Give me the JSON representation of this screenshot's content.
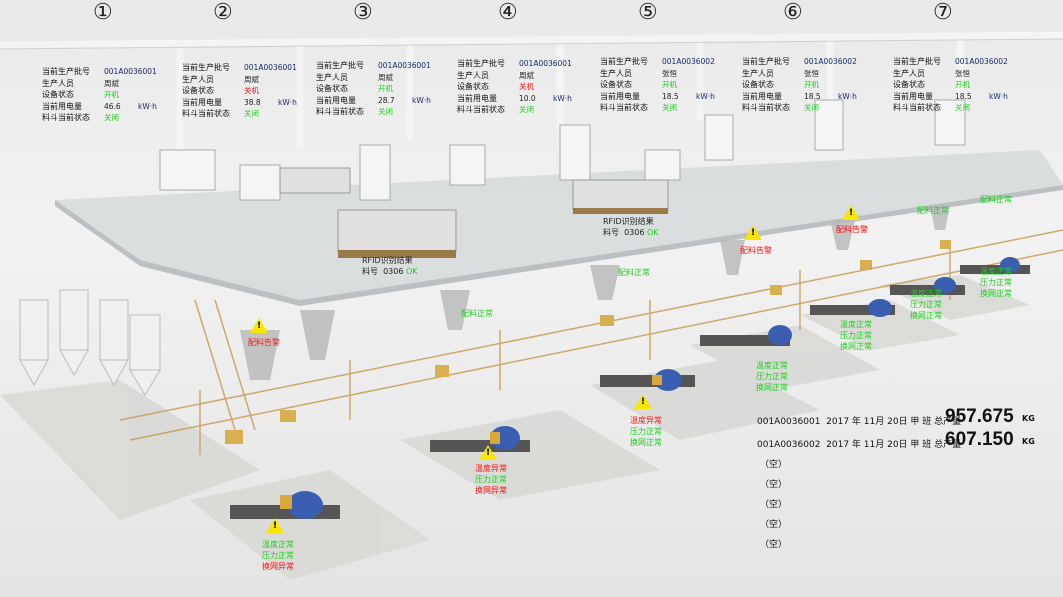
{
  "line_numbers": [
    "①",
    "②",
    "③",
    "④",
    "⑤",
    "⑥",
    "⑦"
  ],
  "panel_labels": {
    "batch": "当前生产批号",
    "operator": "生产人员",
    "device_status": "设备状态",
    "power": "当前用电量",
    "hopper_status": "料斗当前状态",
    "unit": "kW·h"
  },
  "panels": [
    {
      "batch": "001A0036001",
      "operator": "周斌",
      "device_status": "开机",
      "power": "46.6",
      "hopper_status": "关闭"
    },
    {
      "batch": "001A0036001",
      "operator": "周斌",
      "device_status": "关机",
      "power": "38.8",
      "hopper_status": "关闭"
    },
    {
      "batch": "001A0036001",
      "operator": "周斌",
      "device_status": "开机",
      "power": "28.7",
      "hopper_status": "关闭"
    },
    {
      "batch": "001A0036001",
      "operator": "周斌",
      "device_status": "关机",
      "power": "10.0",
      "hopper_status": "关闭"
    },
    {
      "batch": "001A0036002",
      "operator": "张恒",
      "device_status": "开机",
      "power": "18.5",
      "hopper_status": "关闭"
    },
    {
      "batch": "001A0036002",
      "operator": "张恒",
      "device_status": "开机",
      "power": "18.5",
      "hopper_status": "关闭"
    },
    {
      "batch": "001A0036002",
      "operator": "张恒",
      "device_status": "开机",
      "power": "18.5",
      "hopper_status": "关闭"
    }
  ],
  "rfid": [
    {
      "title": "RFID识别结果",
      "part_label": "料号",
      "part": "0306",
      "result": "OK"
    },
    {
      "title": "RFID识别结果",
      "part_label": "料号",
      "part": "0306",
      "result": "OK"
    }
  ],
  "batching_status": [
    "配料告警",
    "配料正常",
    "配料正常",
    "配料告警",
    "配料告警",
    "配料正常",
    "配料正常"
  ],
  "extruder_status": [
    [
      "温度正常",
      "压力正常",
      "换网异常"
    ],
    [
      "温度异常",
      "压力正常",
      "换网异常"
    ],
    [
      "温度异常",
      "压力正常",
      "换网正常"
    ],
    [
      "温度正常",
      "压力正常",
      "换网正常"
    ],
    [
      "温度正常",
      "压力正常",
      "换网正常"
    ],
    [
      "温度正常",
      "压力正常",
      "换网正常"
    ],
    [
      "温度正常",
      "压力正常",
      "换网正常"
    ]
  ],
  "summary": [
    {
      "batch": "001A0036001",
      "desc": "2017 年 11月 20日 甲 班 总产量",
      "value": "957.675",
      "unit": "KG"
    },
    {
      "batch": "001A0036002",
      "desc": "2017 年 11月 20日 甲 班 总产量",
      "value": "607.150",
      "unit": "KG"
    }
  ],
  "empty_slots": [
    "（空）",
    "（空）",
    "（空）",
    "（空）",
    "（空）"
  ],
  "colors": {
    "ok": "#1ad01a",
    "alarm": "#ff1010",
    "warning": "#f7e600",
    "extruder": "#3a5fb0"
  }
}
